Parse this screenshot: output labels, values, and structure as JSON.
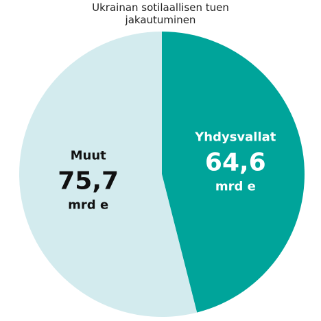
{
  "chart_data": {
    "type": "pie",
    "title": "Ukrainan sotilaallisen tuen jakautuminen",
    "categories": [
      "Yhdysvallat",
      "Muut"
    ],
    "values": [
      64.6,
      75.7
    ],
    "value_labels": [
      "64,6",
      "75,7"
    ],
    "unit": "mrd e",
    "colors": [
      "#00a49a",
      "#d3ebee"
    ],
    "label_colors": [
      "#ffffff",
      "#111111"
    ]
  }
}
